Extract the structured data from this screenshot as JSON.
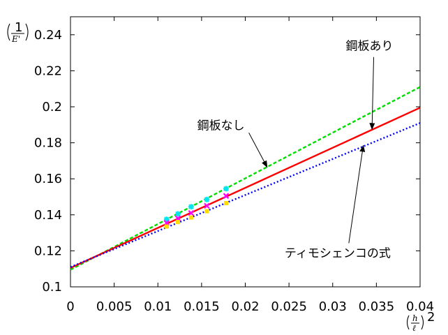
{
  "chart_data": {
    "type": "line",
    "title": "",
    "xlabel": "(h/ℓ)²",
    "ylabel": "(1/E')",
    "xlim": [
      0,
      0.04
    ],
    "ylim": [
      0.1,
      0.25
    ],
    "grid": false,
    "x_ticks": [
      "0",
      "0.005",
      "0.01",
      "0.015",
      "0.02",
      "0.025",
      "0.03",
      "0.035",
      "0.04"
    ],
    "y_ticks": [
      "0.1",
      "0.12",
      "0.14",
      "0.16",
      "0.18",
      "0.2",
      "0.22",
      "0.24"
    ],
    "series": [
      {
        "color": "#00dd00",
        "style": "dashed",
        "x": [
          0,
          0.04
        ],
        "y": [
          0.1095,
          0.211
        ]
      },
      {
        "color": "#ff0000",
        "style": "solid",
        "x": [
          0,
          0.04
        ],
        "y": [
          0.1105,
          0.1995
        ]
      },
      {
        "color": "#0000ff",
        "style": "dotted",
        "x": [
          0,
          0.04
        ],
        "y": [
          0.111,
          0.191
        ]
      }
    ],
    "markers": [
      {
        "color": "#00e5ee",
        "symbol": "star",
        "x": [
          0.011,
          0.0123,
          0.0138,
          0.0156,
          0.0178
        ],
        "y": [
          0.1375,
          0.1405,
          0.1445,
          0.1485,
          0.1545
        ]
      },
      {
        "color": "#ff00ff",
        "symbol": "x",
        "x": [
          0.011,
          0.0123,
          0.0138,
          0.0156,
          0.0178
        ],
        "y": [
          0.1355,
          0.138,
          0.141,
          0.145,
          0.1505
        ]
      },
      {
        "color": "#ffdd00",
        "symbol": "square",
        "x": [
          0.011,
          0.0123,
          0.0138,
          0.0156,
          0.0178
        ],
        "y": [
          0.1335,
          0.136,
          0.1385,
          0.142,
          0.1465
        ]
      }
    ],
    "annotations": [
      {
        "text": "鋼板あり",
        "x": 0.0315,
        "y": 0.2315,
        "arrow_to": [
          0.0345,
          0.1875
        ]
      },
      {
        "text": "鋼板なし",
        "x": 0.0145,
        "y": 0.1875,
        "arrow_to": [
          0.0225,
          0.1665
        ]
      },
      {
        "text": "ティモシェンコの式",
        "x": 0.0245,
        "y": 0.1165,
        "arrow_to": [
          0.0335,
          0.1785
        ]
      }
    ]
  }
}
